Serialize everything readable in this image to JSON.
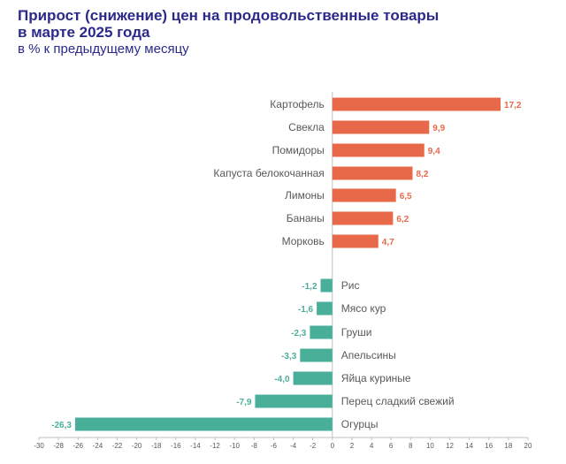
{
  "chart_data": {
    "type": "bar",
    "orientation": "horizontal",
    "title": "Прирост (снижение) цен на продовольственные товары\nв марте 2025 года",
    "subtitle": "в % к предыдущему месяцу",
    "categories": [
      "Картофель",
      "Свекла",
      "Помидоры",
      "Капуста белокочанная",
      "Лимоны",
      "Бананы",
      "Морковь",
      "Рис",
      "Мясо кур",
      "Груши",
      "Апельсины",
      "Яйца куриные",
      "Перец сладкий свежий",
      "Огурцы"
    ],
    "values": [
      17.2,
      9.9,
      9.4,
      8.2,
      6.5,
      6.2,
      4.7,
      -1.2,
      -1.6,
      -2.3,
      -3.3,
      -4.0,
      -7.9,
      -26.3
    ],
    "value_labels": [
      "17,2",
      "9,9",
      "9,4",
      "8,2",
      "6,5",
      "6,2",
      "4,7",
      "-1,2",
      "-1,6",
      "-2,3",
      "-3,3",
      "-4,0",
      "-7,9",
      "-26,3"
    ],
    "xlim": [
      -30,
      20
    ],
    "x_ticks": [
      -30,
      -28,
      -26,
      -24,
      -22,
      -20,
      -18,
      -16,
      -14,
      -12,
      -10,
      -8,
      -6,
      -4,
      -2,
      0,
      2,
      4,
      6,
      8,
      10,
      12,
      14,
      16,
      18,
      20
    ],
    "colors": {
      "positive": "#e8694a",
      "negative": "#4aaf98",
      "title": "#2b2a8a",
      "text": "#595959",
      "axis": "#bfbfbf"
    },
    "grid": false,
    "legend": "none"
  }
}
